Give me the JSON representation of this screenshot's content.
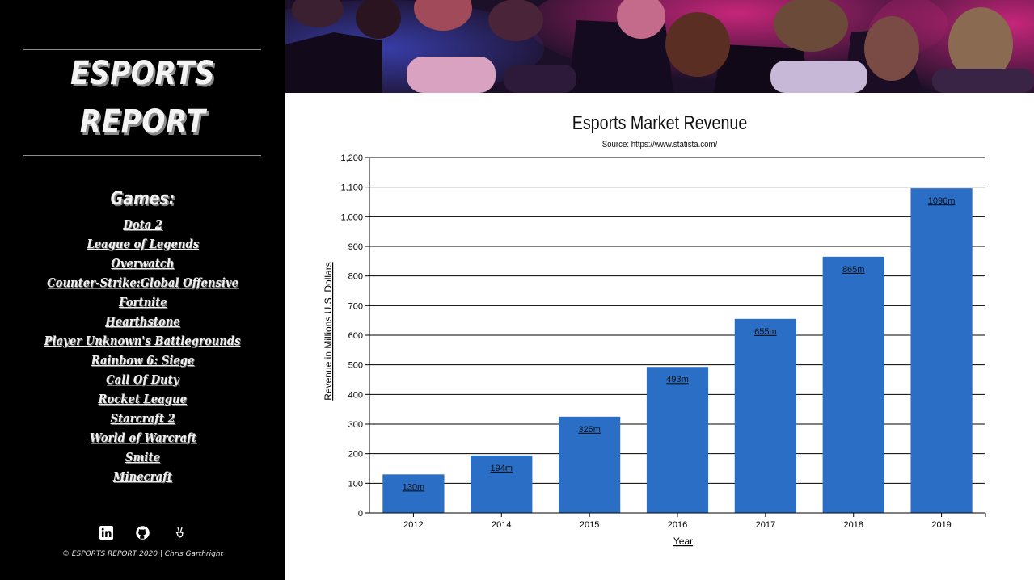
{
  "sidebar": {
    "brand_line1": "ESPORTS",
    "brand_line2": "REPORT",
    "games_heading": "Games:",
    "games": [
      "Dota 2",
      "League of Legends",
      "Overwatch",
      "Counter-Strike:Global Offensive",
      "Fortnite",
      "Hearthstone",
      "Player Unknown's Battlegrounds",
      "Rainbow 6: Siege",
      "Call Of Duty",
      "Rocket League",
      "Starcraft 2",
      "World of Warcraft",
      "Smite",
      "Minecraft"
    ],
    "social_icons": [
      "linkedin-icon",
      "github-icon",
      "angellist-icon"
    ],
    "copyright": "© ESPORTS REPORT 2020 | Chris Garthright"
  },
  "chart_data": {
    "type": "bar",
    "title": "Esports Market Revenue",
    "subtitle": "Source: https://www.statista.com/",
    "xlabel": "Year",
    "ylabel": "Revenue in Millions U.S. Dollars",
    "categories": [
      "2012",
      "2014",
      "2015",
      "2016",
      "2017",
      "2018",
      "2019"
    ],
    "values": [
      130,
      194,
      325,
      493,
      655,
      865,
      1096
    ],
    "data_labels": [
      "130m",
      "194m",
      "325m",
      "493m",
      "655m",
      "865m",
      "1096m"
    ],
    "ylim": [
      0,
      1200
    ],
    "yticks": [
      0,
      100,
      200,
      300,
      400,
      500,
      600,
      700,
      800,
      900,
      1000,
      1100,
      1200
    ],
    "ytick_labels": [
      "0",
      "100",
      "200",
      "300",
      "400",
      "500",
      "600",
      "700",
      "800",
      "900",
      "1,000",
      "1,100",
      "1,200"
    ],
    "grid": true,
    "bar_color": "#2a6ec6"
  }
}
